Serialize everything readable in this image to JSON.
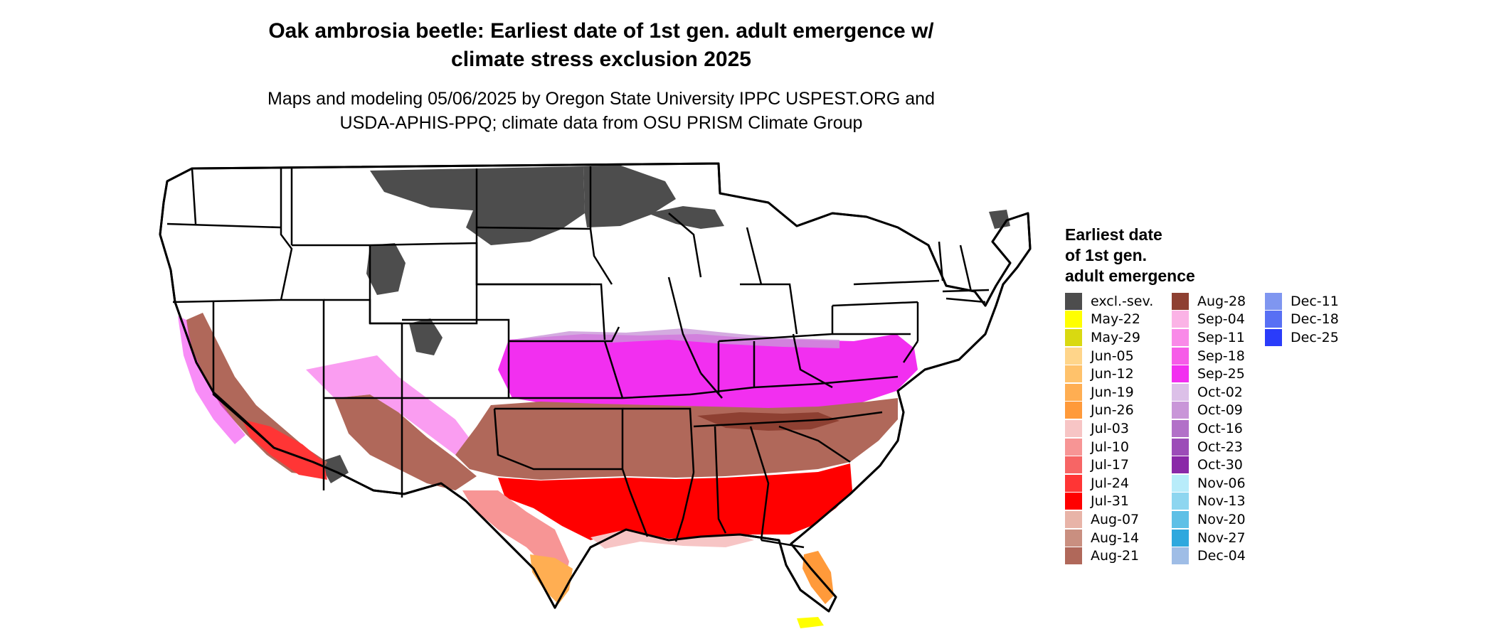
{
  "title": {
    "line1": "Oak ambrosia beetle: Earliest date of 1st gen. adult emergence w/",
    "line2": "climate stress exclusion 2025"
  },
  "subtitle": {
    "line1": "Maps and modeling 05/06/2025 by Oregon State University IPPC USPEST.ORG and",
    "line2": "USDA-APHIS-PPQ; climate data from OSU PRISM Climate Group"
  },
  "legend": {
    "title_lines": [
      "Earliest date",
      "of 1st gen.",
      "adult emergence"
    ],
    "columns": [
      [
        {
          "label": "excl.-sev.",
          "color": "#4d4d4d"
        },
        {
          "label": "May-22",
          "color": "#ffff00"
        },
        {
          "label": "May-29",
          "color": "#d9d911"
        },
        {
          "label": "Jun-05",
          "color": "#ffd58a"
        },
        {
          "label": "Jun-12",
          "color": "#ffc26b"
        },
        {
          "label": "Jun-19",
          "color": "#ffae52"
        },
        {
          "label": "Jun-26",
          "color": "#ff9a3a"
        },
        {
          "label": "Jul-03",
          "color": "#f7c5c5"
        },
        {
          "label": "Jul-10",
          "color": "#f79595"
        },
        {
          "label": "Jul-17",
          "color": "#f76565"
        },
        {
          "label": "Jul-24",
          "color": "#ff3535"
        },
        {
          "label": "Jul-31",
          "color": "#ff0000"
        },
        {
          "label": "Aug-07",
          "color": "#e8b4a8"
        },
        {
          "label": "Aug-14",
          "color": "#c98f80"
        },
        {
          "label": "Aug-21",
          "color": "#b0685a"
        }
      ],
      [
        {
          "label": "Aug-28",
          "color": "#8e4032"
        },
        {
          "label": "Sep-04",
          "color": "#fbb3e6"
        },
        {
          "label": "Sep-11",
          "color": "#f98ae8"
        },
        {
          "label": "Sep-18",
          "color": "#f65ce8"
        },
        {
          "label": "Sep-25",
          "color": "#f22ff0"
        },
        {
          "label": "Oct-02",
          "color": "#dcc0e8"
        },
        {
          "label": "Oct-09",
          "color": "#c996d8"
        },
        {
          "label": "Oct-16",
          "color": "#b270c8"
        },
        {
          "label": "Oct-23",
          "color": "#9c4cb8"
        },
        {
          "label": "Oct-30",
          "color": "#8a28a8"
        },
        {
          "label": "Nov-06",
          "color": "#b8ecfa"
        },
        {
          "label": "Nov-13",
          "color": "#8ed6f0"
        },
        {
          "label": "Nov-20",
          "color": "#5ec0e6"
        },
        {
          "label": "Nov-27",
          "color": "#2ea8de"
        },
        {
          "label": "Dec-04",
          "color": "#9fbde6"
        }
      ],
      [
        {
          "label": "Dec-11",
          "color": "#7f96f0"
        },
        {
          "label": "Dec-18",
          "color": "#5870f4"
        },
        {
          "label": "Dec-25",
          "color": "#2a3cfa"
        }
      ]
    ]
  }
}
